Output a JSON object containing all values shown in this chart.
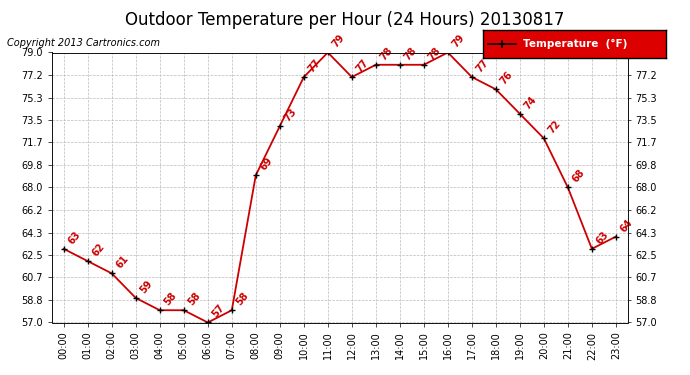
{
  "title": "Outdoor Temperature per Hour (24 Hours) 20130817",
  "copyright": "Copyright 2013 Cartronics.com",
  "legend_label": "Temperature  (°F)",
  "hours": [
    0,
    1,
    2,
    3,
    4,
    5,
    6,
    7,
    8,
    9,
    10,
    11,
    12,
    13,
    14,
    15,
    16,
    17,
    18,
    19,
    20,
    21,
    22,
    23
  ],
  "temps": [
    63,
    62,
    61,
    59,
    58,
    58,
    57,
    58,
    69,
    73,
    77,
    79,
    77,
    78,
    78,
    78,
    79,
    77,
    76,
    74,
    72,
    68,
    63,
    64
  ],
  "hour_labels": [
    "00:00",
    "01:00",
    "02:00",
    "03:00",
    "04:00",
    "05:00",
    "06:00",
    "07:00",
    "08:00",
    "09:00",
    "10:00",
    "11:00",
    "12:00",
    "13:00",
    "14:00",
    "15:00",
    "16:00",
    "17:00",
    "18:00",
    "19:00",
    "20:00",
    "21:00",
    "22:00",
    "23:00"
  ],
  "ylim": [
    57.0,
    79.0
  ],
  "yticks": [
    57.0,
    58.8,
    60.7,
    62.5,
    64.3,
    66.2,
    68.0,
    69.8,
    71.7,
    73.5,
    75.3,
    77.2,
    79.0
  ],
  "line_color": "#cc0000",
  "marker_color": "#000000",
  "label_color": "#cc0000",
  "bg_color": "#ffffff",
  "grid_color": "#bbbbbb",
  "title_fontsize": 12,
  "label_fontsize": 7,
  "annotation_fontsize": 7,
  "legend_bg": "#dd0000",
  "legend_text_color": "#ffffff",
  "copyright_fontsize": 7
}
